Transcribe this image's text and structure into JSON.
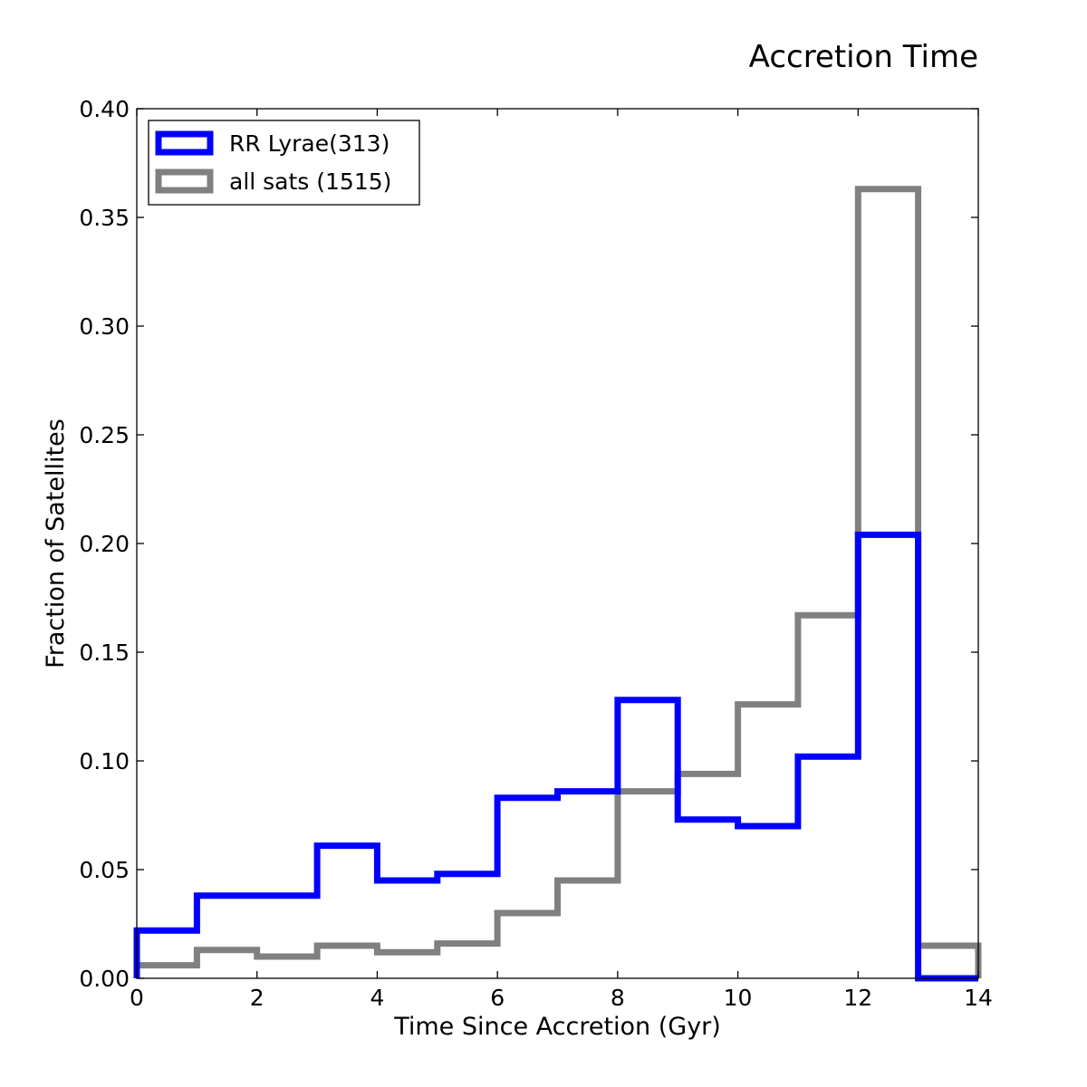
{
  "chart_data": {
    "type": "histogram-step",
    "title": "Accretion Time",
    "xlabel": "Time Since Accretion (Gyr)",
    "ylabel": "Fraction of Satellites",
    "xlim": [
      0,
      14
    ],
    "ylim": [
      0,
      0.4
    ],
    "x_ticks": [
      0,
      2,
      4,
      6,
      8,
      10,
      12,
      14
    ],
    "x_tick_labels": [
      "0",
      "2",
      "4",
      "6",
      "8",
      "10",
      "12",
      "14"
    ],
    "y_ticks": [
      0,
      0.05,
      0.1,
      0.15,
      0.2,
      0.25,
      0.3,
      0.35,
      0.4
    ],
    "y_tick_labels": [
      "0.00",
      "0.05",
      "0.10",
      "0.15",
      "0.20",
      "0.25",
      "0.30",
      "0.35",
      "0.40"
    ],
    "bin_edges": [
      0,
      1,
      2,
      3,
      4,
      5,
      6,
      7,
      8,
      9,
      10,
      11,
      12,
      13,
      14
    ],
    "legend_position": "upper-left",
    "series": [
      {
        "name": "RR Lyrae(313)",
        "color": "#0000ff",
        "values": [
          0.022,
          0.038,
          0.038,
          0.061,
          0.045,
          0.048,
          0.083,
          0.086,
          0.128,
          0.073,
          0.07,
          0.102,
          0.204,
          0.0
        ]
      },
      {
        "name": "all sats (1515)",
        "color": "#808080",
        "values": [
          0.006,
          0.013,
          0.01,
          0.015,
          0.012,
          0.016,
          0.03,
          0.045,
          0.086,
          0.094,
          0.126,
          0.167,
          0.363,
          0.015
        ]
      }
    ]
  }
}
